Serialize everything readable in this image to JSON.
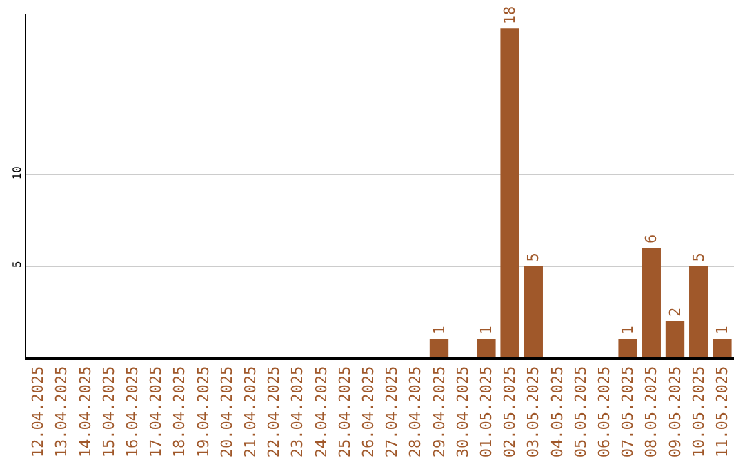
{
  "chart_data": {
    "type": "bar",
    "categories": [
      "12.04.2025",
      "13.04.2025",
      "14.04.2025",
      "15.04.2025",
      "16.04.2025",
      "17.04.2025",
      "18.04.2025",
      "19.04.2025",
      "20.04.2025",
      "21.04.2025",
      "22.04.2025",
      "23.04.2025",
      "24.04.2025",
      "25.04.2025",
      "26.04.2025",
      "27.04.2025",
      "28.04.2025",
      "29.04.2025",
      "30.04.2025",
      "01.05.2025",
      "02.05.2025",
      "03.05.2025",
      "04.05.2025",
      "05.05.2025",
      "06.05.2025",
      "07.05.2025",
      "08.05.2025",
      "09.05.2025",
      "10.05.2025",
      "11.05.2025"
    ],
    "values": [
      0,
      0,
      0,
      0,
      0,
      0,
      0,
      0,
      0,
      0,
      0,
      0,
      0,
      0,
      0,
      0,
      0,
      1,
      0,
      1,
      18,
      5,
      0,
      0,
      0,
      1,
      6,
      2,
      5,
      1
    ],
    "value_labels": [
      null,
      null,
      null,
      null,
      null,
      null,
      null,
      null,
      null,
      null,
      null,
      null,
      null,
      null,
      null,
      null,
      null,
      "1",
      null,
      "1",
      "18",
      "5",
      null,
      null,
      null,
      "1",
      "6",
      "2",
      "5",
      "1"
    ],
    "color": "#a0582a",
    "ylim": [
      0,
      18.8
    ],
    "yticks": [
      5,
      10
    ],
    "grid": "y",
    "legend": false
  }
}
